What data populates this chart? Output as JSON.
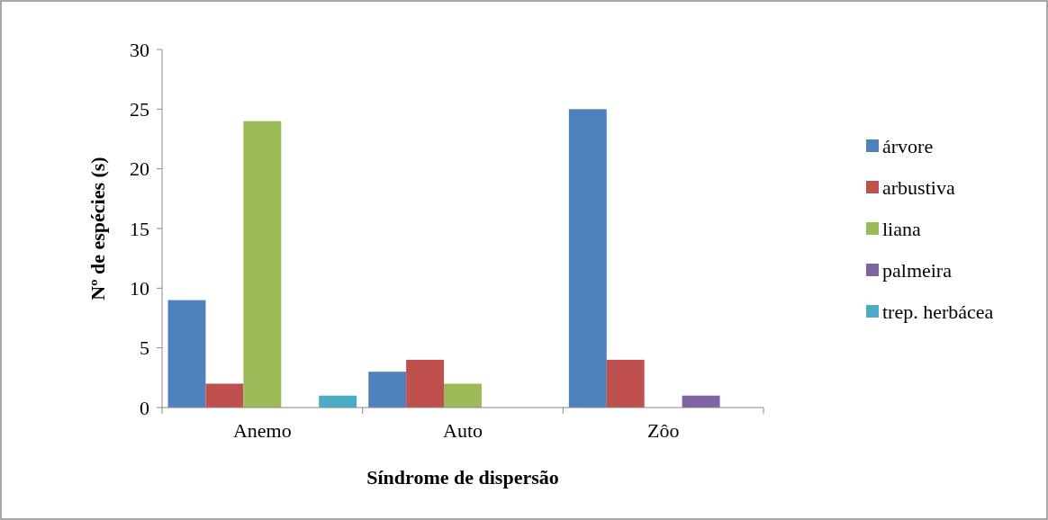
{
  "chart_data": {
    "type": "bar",
    "xlabel": "Síndrome de dispersão",
    "ylabel": "Nº de espécies (s)",
    "categories": [
      "Anemo",
      "Auto",
      "Zôo"
    ],
    "series": [
      {
        "name": "árvore",
        "color": "#4f81bd",
        "values": [
          9,
          3,
          25
        ]
      },
      {
        "name": "arbustiva",
        "color": "#c0504d",
        "values": [
          2,
          4,
          4
        ]
      },
      {
        "name": "liana",
        "color": "#9bbb59",
        "values": [
          24,
          2,
          0
        ]
      },
      {
        "name": "palmeira",
        "color": "#8064a2",
        "values": [
          0,
          0,
          1
        ]
      },
      {
        "name": "trep. herbácea",
        "color": "#4bacc6",
        "values": [
          1,
          0,
          0
        ]
      }
    ],
    "ylim": [
      0,
      30
    ],
    "yticks": [
      0,
      5,
      10,
      15,
      20,
      25,
      30
    ],
    "grid": false,
    "legend": "right"
  }
}
